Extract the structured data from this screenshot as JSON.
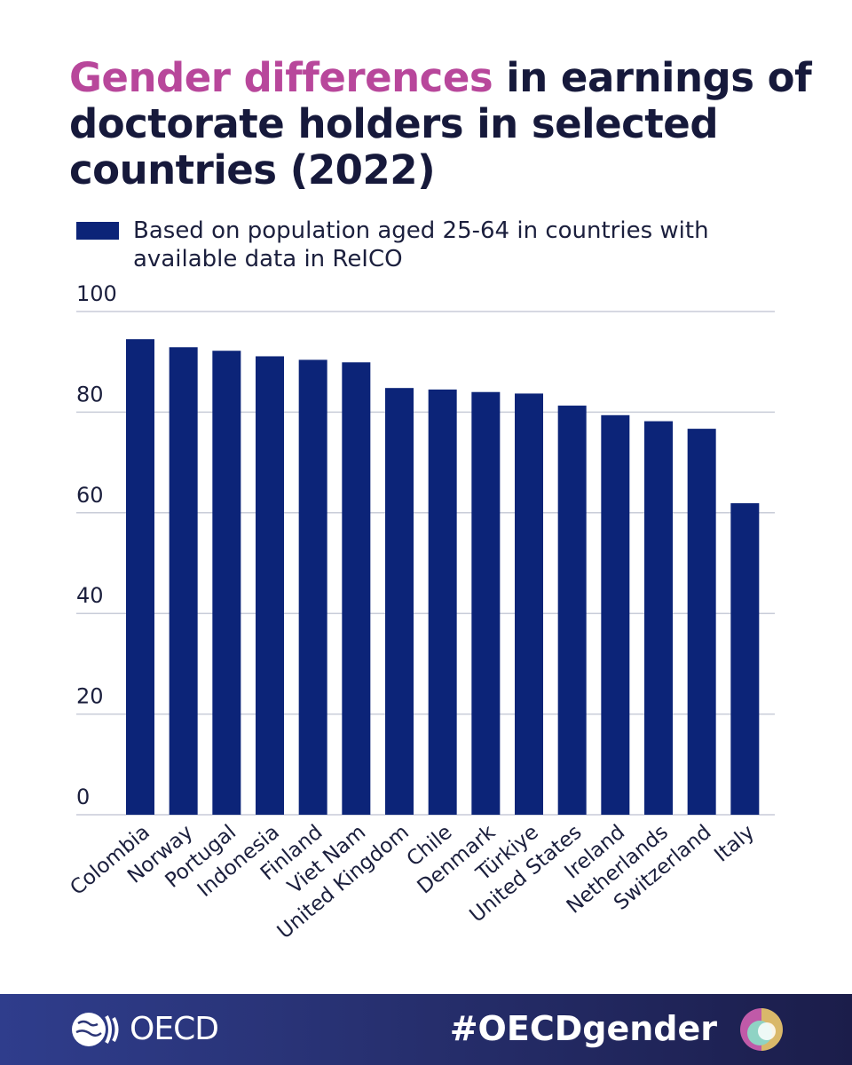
{
  "title": {
    "highlight": "Gender differences",
    "rest": " in earnings of doctorate holders in selected countries (2022)"
  },
  "colors": {
    "bar": "#0c2478",
    "title_accent": "#b8479b",
    "title_text": "#16193b",
    "grid": "#c8ccd8"
  },
  "footer": {
    "logo_text": "OECD",
    "hashtag": "#OECDgender",
    "logo_icon": "oecd-globe-icon",
    "mark_icon": "gender-swirl-icon"
  },
  "chart_data": {
    "type": "bar",
    "title": "Gender differences in earnings of doctorate holders in selected countries (2022)",
    "categories": [
      "Colombia",
      "Norway",
      "Portugal",
      "Indonesia",
      "Finland",
      "Viet Nam",
      "United Kingdom",
      "Chile",
      "Denmark",
      "Türkiye",
      "United States",
      "Ireland",
      "Netherlands",
      "Switzerland",
      "Italy"
    ],
    "series": [
      {
        "name": "Based on population aged 25-64 in countries with available data in ReICO",
        "values": [
          94.5,
          92.9,
          92.2,
          91.1,
          90.4,
          89.9,
          84.8,
          84.5,
          84.0,
          83.7,
          81.3,
          79.4,
          78.2,
          76.7,
          61.9
        ]
      }
    ],
    "ylim": [
      0,
      100
    ],
    "yticks": [
      "0",
      "20",
      "40",
      "60",
      "80",
      "100"
    ],
    "xlabel": "",
    "ylabel": "",
    "grid": true,
    "legend_position": "top-left"
  }
}
